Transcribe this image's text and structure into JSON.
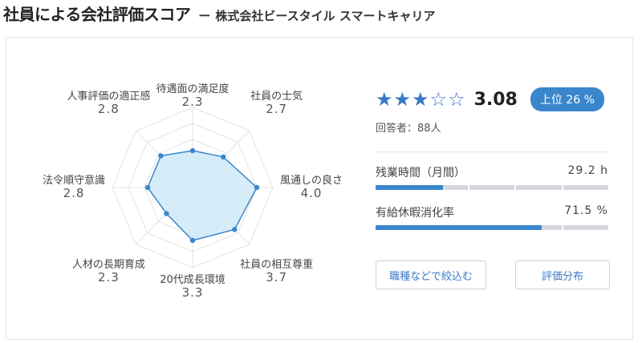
{
  "header": {
    "title": "社員による会社評価スコア",
    "dash": "ー",
    "company": "株式会社ビースタイル スマートキャリア"
  },
  "radar": {
    "max": 5,
    "fill_color": "#cfe9f7",
    "line_color": "#3a86cc",
    "axes": [
      {
        "label": "待遇面の満足度",
        "value": 2.3,
        "value_text": "2.3"
      },
      {
        "label": "社員の士気",
        "value": 2.7,
        "value_text": "2.7"
      },
      {
        "label": "風通しの良さ",
        "value": 4.0,
        "value_text": "4.0"
      },
      {
        "label": "社員の相互尊重",
        "value": 3.7,
        "value_text": "3.7"
      },
      {
        "label": "20代成長環境",
        "value": 3.3,
        "value_text": "3.3"
      },
      {
        "label": "人材の長期育成",
        "value": 2.3,
        "value_text": "2.3"
      },
      {
        "label": "法令順守意識",
        "value": 2.8,
        "value_text": "2.8"
      },
      {
        "label": "人事評価の適正感",
        "value": 2.8,
        "value_text": "2.8"
      }
    ]
  },
  "summary": {
    "stars_filled": 3,
    "stars_total": 5,
    "score": "3.08",
    "rank": "上位 26 %",
    "respondents": "回答者：88人"
  },
  "metrics": [
    {
      "label": "残業時間（月間）",
      "value": "29.2 h",
      "fraction": 0.29
    },
    {
      "label": "有給休暇消化率",
      "value": "71.5 %",
      "fraction": 0.715
    }
  ],
  "buttons": {
    "filter": "職種などで絞込む",
    "distribution": "評価分布"
  }
}
